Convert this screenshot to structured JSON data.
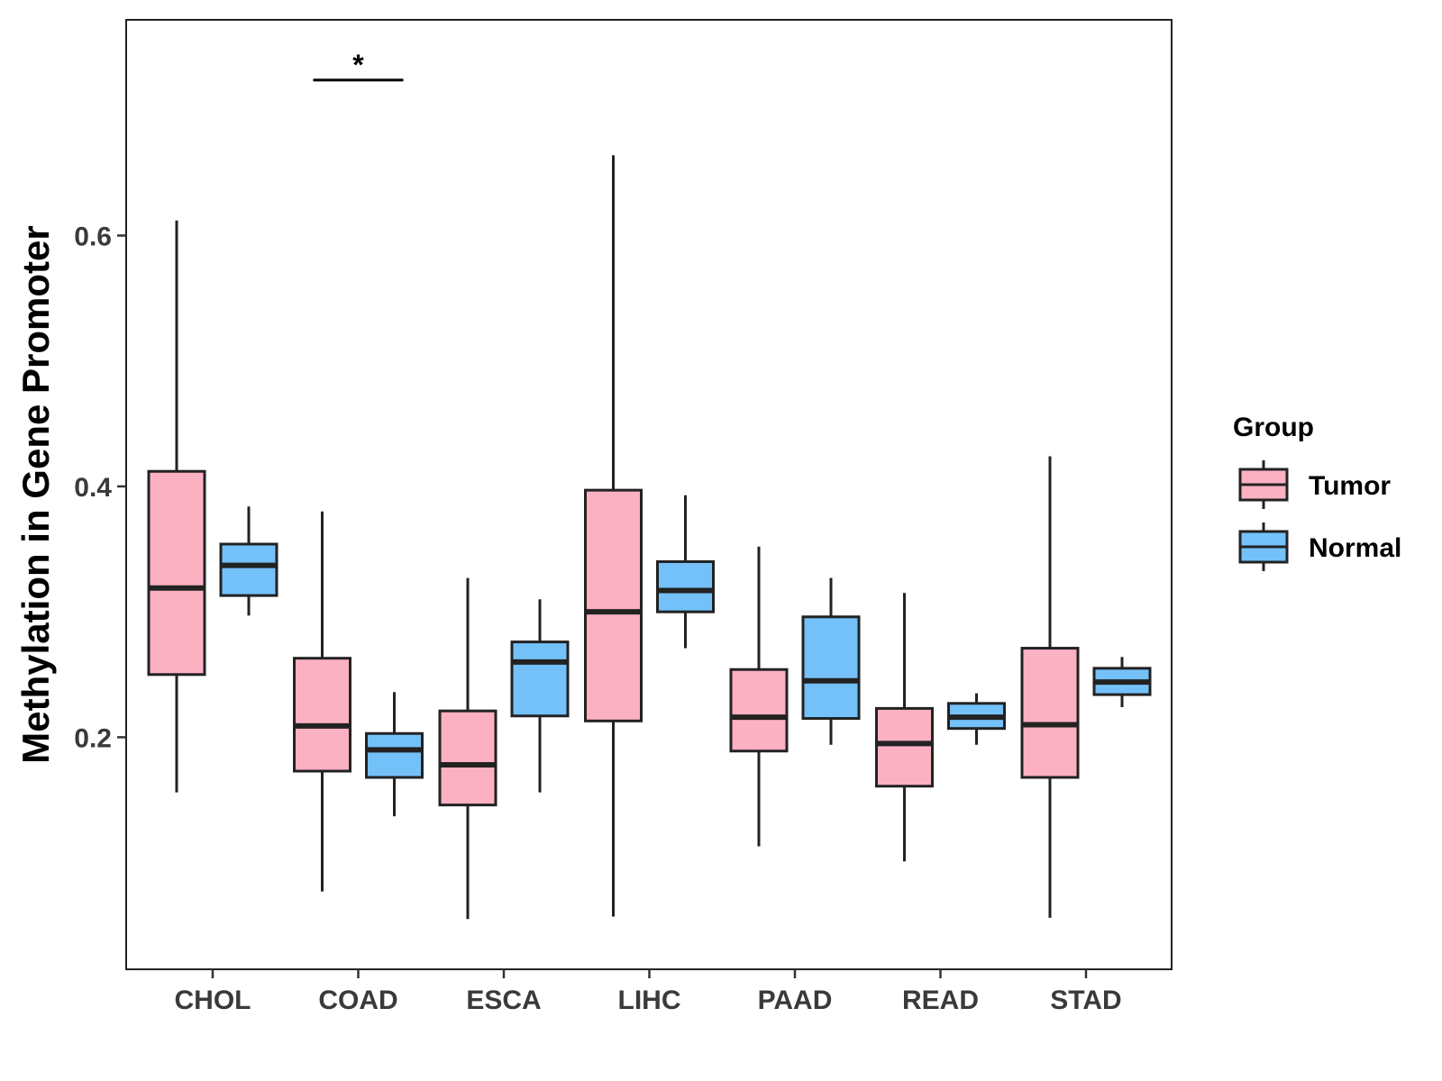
{
  "chart_data": {
    "type": "boxplot",
    "title": "",
    "xlabel": "",
    "ylabel": "Methylation in Gene Promoter",
    "ylim": [
      0.015,
      0.772
    ],
    "yticks": [
      0.2,
      0.4,
      0.6
    ],
    "ytick_labels": [
      "0.2",
      "0.4",
      "0.6"
    ],
    "categories": [
      "CHOL",
      "COAD",
      "ESCA",
      "LIHC",
      "PAAD",
      "READ",
      "STAD"
    ],
    "legend": {
      "title": "Group",
      "position": "right",
      "entries": [
        "Tumor",
        "Normal"
      ]
    },
    "series": [
      {
        "name": "Tumor",
        "color": "#FCB1C3",
        "boxes": [
          {
            "min": 0.156,
            "q1": 0.25,
            "median": 0.319,
            "q3": 0.412,
            "max": 0.612
          },
          {
            "min": 0.077,
            "q1": 0.173,
            "median": 0.209,
            "q3": 0.263,
            "max": 0.38
          },
          {
            "min": 0.055,
            "q1": 0.146,
            "median": 0.178,
            "q3": 0.221,
            "max": 0.327
          },
          {
            "min": 0.057,
            "q1": 0.213,
            "median": 0.3,
            "q3": 0.397,
            "max": 0.664
          },
          {
            "min": 0.113,
            "q1": 0.189,
            "median": 0.216,
            "q3": 0.254,
            "max": 0.352
          },
          {
            "min": 0.101,
            "q1": 0.161,
            "median": 0.195,
            "q3": 0.223,
            "max": 0.315
          },
          {
            "min": 0.056,
            "q1": 0.168,
            "median": 0.21,
            "q3": 0.271,
            "max": 0.424
          }
        ]
      },
      {
        "name": "Normal",
        "color": "#74C1FA",
        "boxes": [
          {
            "min": 0.297,
            "q1": 0.313,
            "median": 0.337,
            "q3": 0.354,
            "max": 0.384
          },
          {
            "min": 0.137,
            "q1": 0.168,
            "median": 0.19,
            "q3": 0.203,
            "max": 0.236
          },
          {
            "min": 0.156,
            "q1": 0.217,
            "median": 0.26,
            "q3": 0.276,
            "max": 0.31
          },
          {
            "min": 0.271,
            "q1": 0.3,
            "median": 0.317,
            "q3": 0.34,
            "max": 0.393
          },
          {
            "min": 0.194,
            "q1": 0.215,
            "median": 0.245,
            "q3": 0.296,
            "max": 0.327
          },
          {
            "min": 0.194,
            "q1": 0.207,
            "median": 0.216,
            "q3": 0.227,
            "max": 0.235
          },
          {
            "min": 0.224,
            "q1": 0.234,
            "median": 0.244,
            "q3": 0.255,
            "max": 0.264
          }
        ]
      }
    ],
    "annotations": [
      {
        "text": "*",
        "category": "COAD",
        "y": 0.724
      }
    ]
  }
}
